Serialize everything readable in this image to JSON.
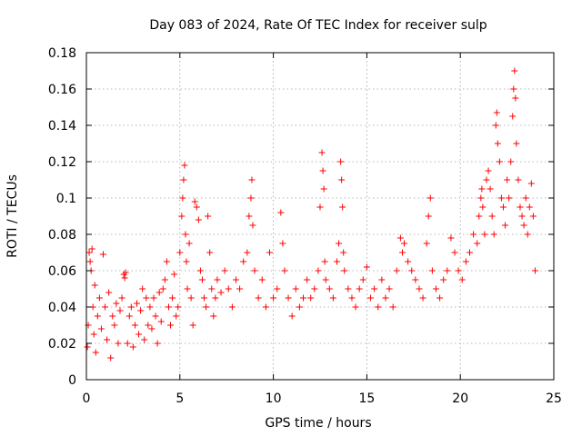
{
  "chart_data": {
    "type": "scatter",
    "title": "Day 083 of 2024, Rate Of TEC Index for receiver sulp",
    "xlabel": "GPS time / hours",
    "ylabel": "ROTI / TECUs",
    "xlim": [
      0,
      25
    ],
    "ylim": [
      0,
      0.18
    ],
    "xticks": [
      0,
      5,
      10,
      15,
      20,
      25
    ],
    "xtick_labels": [
      "0",
      "5",
      "10",
      "15",
      "20",
      "25"
    ],
    "yticks": [
      0,
      0.02,
      0.04,
      0.06,
      0.08,
      0.1,
      0.12,
      0.14,
      0.16,
      0.18
    ],
    "ytick_labels": [
      "0",
      "0.02",
      "0.04",
      "0.06",
      "0.08",
      "0.1",
      "0.12",
      "0.14",
      "0.16",
      "0.18"
    ],
    "grid": true,
    "marker": "+",
    "marker_color": "#ff0000",
    "series": [
      {
        "name": "ROTI",
        "color": "#ff0000",
        "points": [
          [
            0.05,
            0.018
          ],
          [
            0.1,
            0.03
          ],
          [
            0.15,
            0.07
          ],
          [
            0.2,
            0.065
          ],
          [
            0.25,
            0.06
          ],
          [
            0.3,
            0.072
          ],
          [
            0.35,
            0.04
          ],
          [
            0.4,
            0.025
          ],
          [
            0.45,
            0.052
          ],
          [
            0.5,
            0.015
          ],
          [
            0.6,
            0.035
          ],
          [
            0.7,
            0.045
          ],
          [
            0.8,
            0.028
          ],
          [
            0.9,
            0.069
          ],
          [
            1.0,
            0.04
          ],
          [
            1.1,
            0.022
          ],
          [
            1.2,
            0.048
          ],
          [
            1.3,
            0.012
          ],
          [
            1.4,
            0.035
          ],
          [
            1.5,
            0.03
          ],
          [
            1.6,
            0.042
          ],
          [
            1.7,
            0.02
          ],
          [
            1.8,
            0.038
          ],
          [
            1.9,
            0.045
          ],
          [
            2.0,
            0.058
          ],
          [
            2.05,
            0.056
          ],
          [
            2.1,
            0.059
          ],
          [
            2.2,
            0.02
          ],
          [
            2.3,
            0.035
          ],
          [
            2.4,
            0.04
          ],
          [
            2.5,
            0.018
          ],
          [
            2.6,
            0.03
          ],
          [
            2.7,
            0.042
          ],
          [
            2.8,
            0.025
          ],
          [
            2.9,
            0.038
          ],
          [
            3.0,
            0.05
          ],
          [
            3.1,
            0.022
          ],
          [
            3.2,
            0.045
          ],
          [
            3.3,
            0.03
          ],
          [
            3.4,
            0.04
          ],
          [
            3.5,
            0.028
          ],
          [
            3.6,
            0.045
          ],
          [
            3.7,
            0.035
          ],
          [
            3.8,
            0.02
          ],
          [
            3.9,
            0.048
          ],
          [
            4.0,
            0.032
          ],
          [
            4.1,
            0.05
          ],
          [
            4.2,
            0.055
          ],
          [
            4.3,
            0.065
          ],
          [
            4.4,
            0.04
          ],
          [
            4.5,
            0.03
          ],
          [
            4.6,
            0.045
          ],
          [
            4.7,
            0.058
          ],
          [
            4.8,
            0.035
          ],
          [
            4.9,
            0.04
          ],
          [
            5.0,
            0.07
          ],
          [
            5.1,
            0.09
          ],
          [
            5.15,
            0.1
          ],
          [
            5.2,
            0.11
          ],
          [
            5.25,
            0.118
          ],
          [
            5.3,
            0.08
          ],
          [
            5.35,
            0.065
          ],
          [
            5.4,
            0.05
          ],
          [
            5.5,
            0.075
          ],
          [
            5.6,
            0.045
          ],
          [
            5.7,
            0.03
          ],
          [
            5.8,
            0.098
          ],
          [
            5.9,
            0.095
          ],
          [
            6.0,
            0.088
          ],
          [
            6.1,
            0.06
          ],
          [
            6.2,
            0.055
          ],
          [
            6.3,
            0.045
          ],
          [
            6.4,
            0.04
          ],
          [
            6.5,
            0.09
          ],
          [
            6.6,
            0.07
          ],
          [
            6.7,
            0.05
          ],
          [
            6.8,
            0.035
          ],
          [
            6.9,
            0.045
          ],
          [
            7.0,
            0.055
          ],
          [
            7.2,
            0.048
          ],
          [
            7.4,
            0.06
          ],
          [
            7.6,
            0.05
          ],
          [
            7.8,
            0.04
          ],
          [
            8.0,
            0.055
          ],
          [
            8.2,
            0.05
          ],
          [
            8.4,
            0.065
          ],
          [
            8.6,
            0.07
          ],
          [
            8.7,
            0.09
          ],
          [
            8.8,
            0.1
          ],
          [
            8.85,
            0.11
          ],
          [
            8.9,
            0.085
          ],
          [
            9.0,
            0.06
          ],
          [
            9.2,
            0.045
          ],
          [
            9.4,
            0.055
          ],
          [
            9.6,
            0.04
          ],
          [
            9.8,
            0.07
          ],
          [
            10.0,
            0.045
          ],
          [
            10.2,
            0.05
          ],
          [
            10.4,
            0.092
          ],
          [
            10.5,
            0.075
          ],
          [
            10.6,
            0.06
          ],
          [
            10.8,
            0.045
          ],
          [
            11.0,
            0.035
          ],
          [
            11.2,
            0.05
          ],
          [
            11.4,
            0.04
          ],
          [
            11.6,
            0.045
          ],
          [
            11.8,
            0.055
          ],
          [
            12.0,
            0.045
          ],
          [
            12.2,
            0.05
          ],
          [
            12.4,
            0.06
          ],
          [
            12.5,
            0.095
          ],
          [
            12.6,
            0.125
          ],
          [
            12.65,
            0.115
          ],
          [
            12.7,
            0.105
          ],
          [
            12.75,
            0.065
          ],
          [
            12.8,
            0.055
          ],
          [
            13.0,
            0.05
          ],
          [
            13.2,
            0.045
          ],
          [
            13.4,
            0.065
          ],
          [
            13.5,
            0.075
          ],
          [
            13.6,
            0.12
          ],
          [
            13.65,
            0.11
          ],
          [
            13.7,
            0.095
          ],
          [
            13.75,
            0.07
          ],
          [
            13.8,
            0.06
          ],
          [
            14.0,
            0.05
          ],
          [
            14.2,
            0.045
          ],
          [
            14.4,
            0.04
          ],
          [
            14.6,
            0.05
          ],
          [
            14.8,
            0.055
          ],
          [
            15.0,
            0.062
          ],
          [
            15.2,
            0.045
          ],
          [
            15.4,
            0.05
          ],
          [
            15.6,
            0.04
          ],
          [
            15.8,
            0.055
          ],
          [
            16.0,
            0.045
          ],
          [
            16.2,
            0.05
          ],
          [
            16.4,
            0.04
          ],
          [
            16.6,
            0.06
          ],
          [
            16.8,
            0.078
          ],
          [
            16.9,
            0.07
          ],
          [
            17.0,
            0.075
          ],
          [
            17.2,
            0.065
          ],
          [
            17.4,
            0.06
          ],
          [
            17.6,
            0.055
          ],
          [
            17.8,
            0.05
          ],
          [
            18.0,
            0.045
          ],
          [
            18.2,
            0.075
          ],
          [
            18.3,
            0.09
          ],
          [
            18.4,
            0.1
          ],
          [
            18.5,
            0.06
          ],
          [
            18.7,
            0.05
          ],
          [
            18.9,
            0.045
          ],
          [
            19.1,
            0.055
          ],
          [
            19.3,
            0.06
          ],
          [
            19.5,
            0.078
          ],
          [
            19.7,
            0.07
          ],
          [
            19.9,
            0.06
          ],
          [
            20.1,
            0.055
          ],
          [
            20.3,
            0.065
          ],
          [
            20.5,
            0.07
          ],
          [
            20.7,
            0.08
          ],
          [
            20.9,
            0.075
          ],
          [
            21.0,
            0.09
          ],
          [
            21.1,
            0.1
          ],
          [
            21.15,
            0.105
          ],
          [
            21.2,
            0.095
          ],
          [
            21.3,
            0.08
          ],
          [
            21.4,
            0.11
          ],
          [
            21.5,
            0.115
          ],
          [
            21.6,
            0.105
          ],
          [
            21.7,
            0.09
          ],
          [
            21.8,
            0.08
          ],
          [
            21.9,
            0.14
          ],
          [
            21.95,
            0.147
          ],
          [
            22.0,
            0.13
          ],
          [
            22.1,
            0.12
          ],
          [
            22.2,
            0.1
          ],
          [
            22.3,
            0.095
          ],
          [
            22.4,
            0.085
          ],
          [
            22.5,
            0.11
          ],
          [
            22.6,
            0.1
          ],
          [
            22.7,
            0.12
          ],
          [
            22.8,
            0.145
          ],
          [
            22.85,
            0.16
          ],
          [
            22.9,
            0.17
          ],
          [
            22.95,
            0.155
          ],
          [
            23.0,
            0.13
          ],
          [
            23.1,
            0.11
          ],
          [
            23.2,
            0.095
          ],
          [
            23.3,
            0.09
          ],
          [
            23.4,
            0.085
          ],
          [
            23.5,
            0.1
          ],
          [
            23.6,
            0.08
          ],
          [
            23.7,
            0.095
          ],
          [
            23.8,
            0.108
          ],
          [
            23.9,
            0.09
          ],
          [
            24.0,
            0.06
          ]
        ]
      }
    ]
  }
}
